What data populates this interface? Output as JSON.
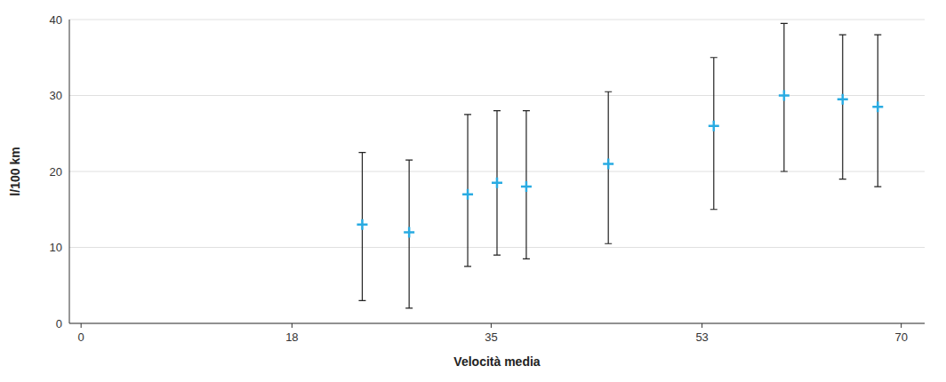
{
  "chart_data": {
    "type": "errorbar",
    "xlabel": "Velocità media",
    "ylabel": "l/100 km",
    "x": [
      24,
      28,
      33,
      35.5,
      38,
      45,
      54,
      60,
      65,
      68
    ],
    "values": [
      13,
      12,
      17,
      18.5,
      18,
      21,
      26,
      30,
      29.5,
      28.5
    ],
    "yerr_up": [
      9.5,
      9.5,
      10.5,
      9.5,
      10,
      9.5,
      9,
      9.5,
      8.5,
      9.5
    ],
    "yerr_down": [
      10,
      10,
      9.5,
      9.5,
      9.5,
      10.5,
      11,
      10,
      10.5,
      10.5
    ],
    "color": "#29ABE2",
    "marker": "plus",
    "xlim": [
      -1,
      72
    ],
    "ylim": [
      0,
      40
    ],
    "xticks": [
      0,
      18,
      35,
      53,
      70
    ],
    "yticks": [
      0,
      10,
      20,
      30,
      40
    ],
    "grid": true
  }
}
